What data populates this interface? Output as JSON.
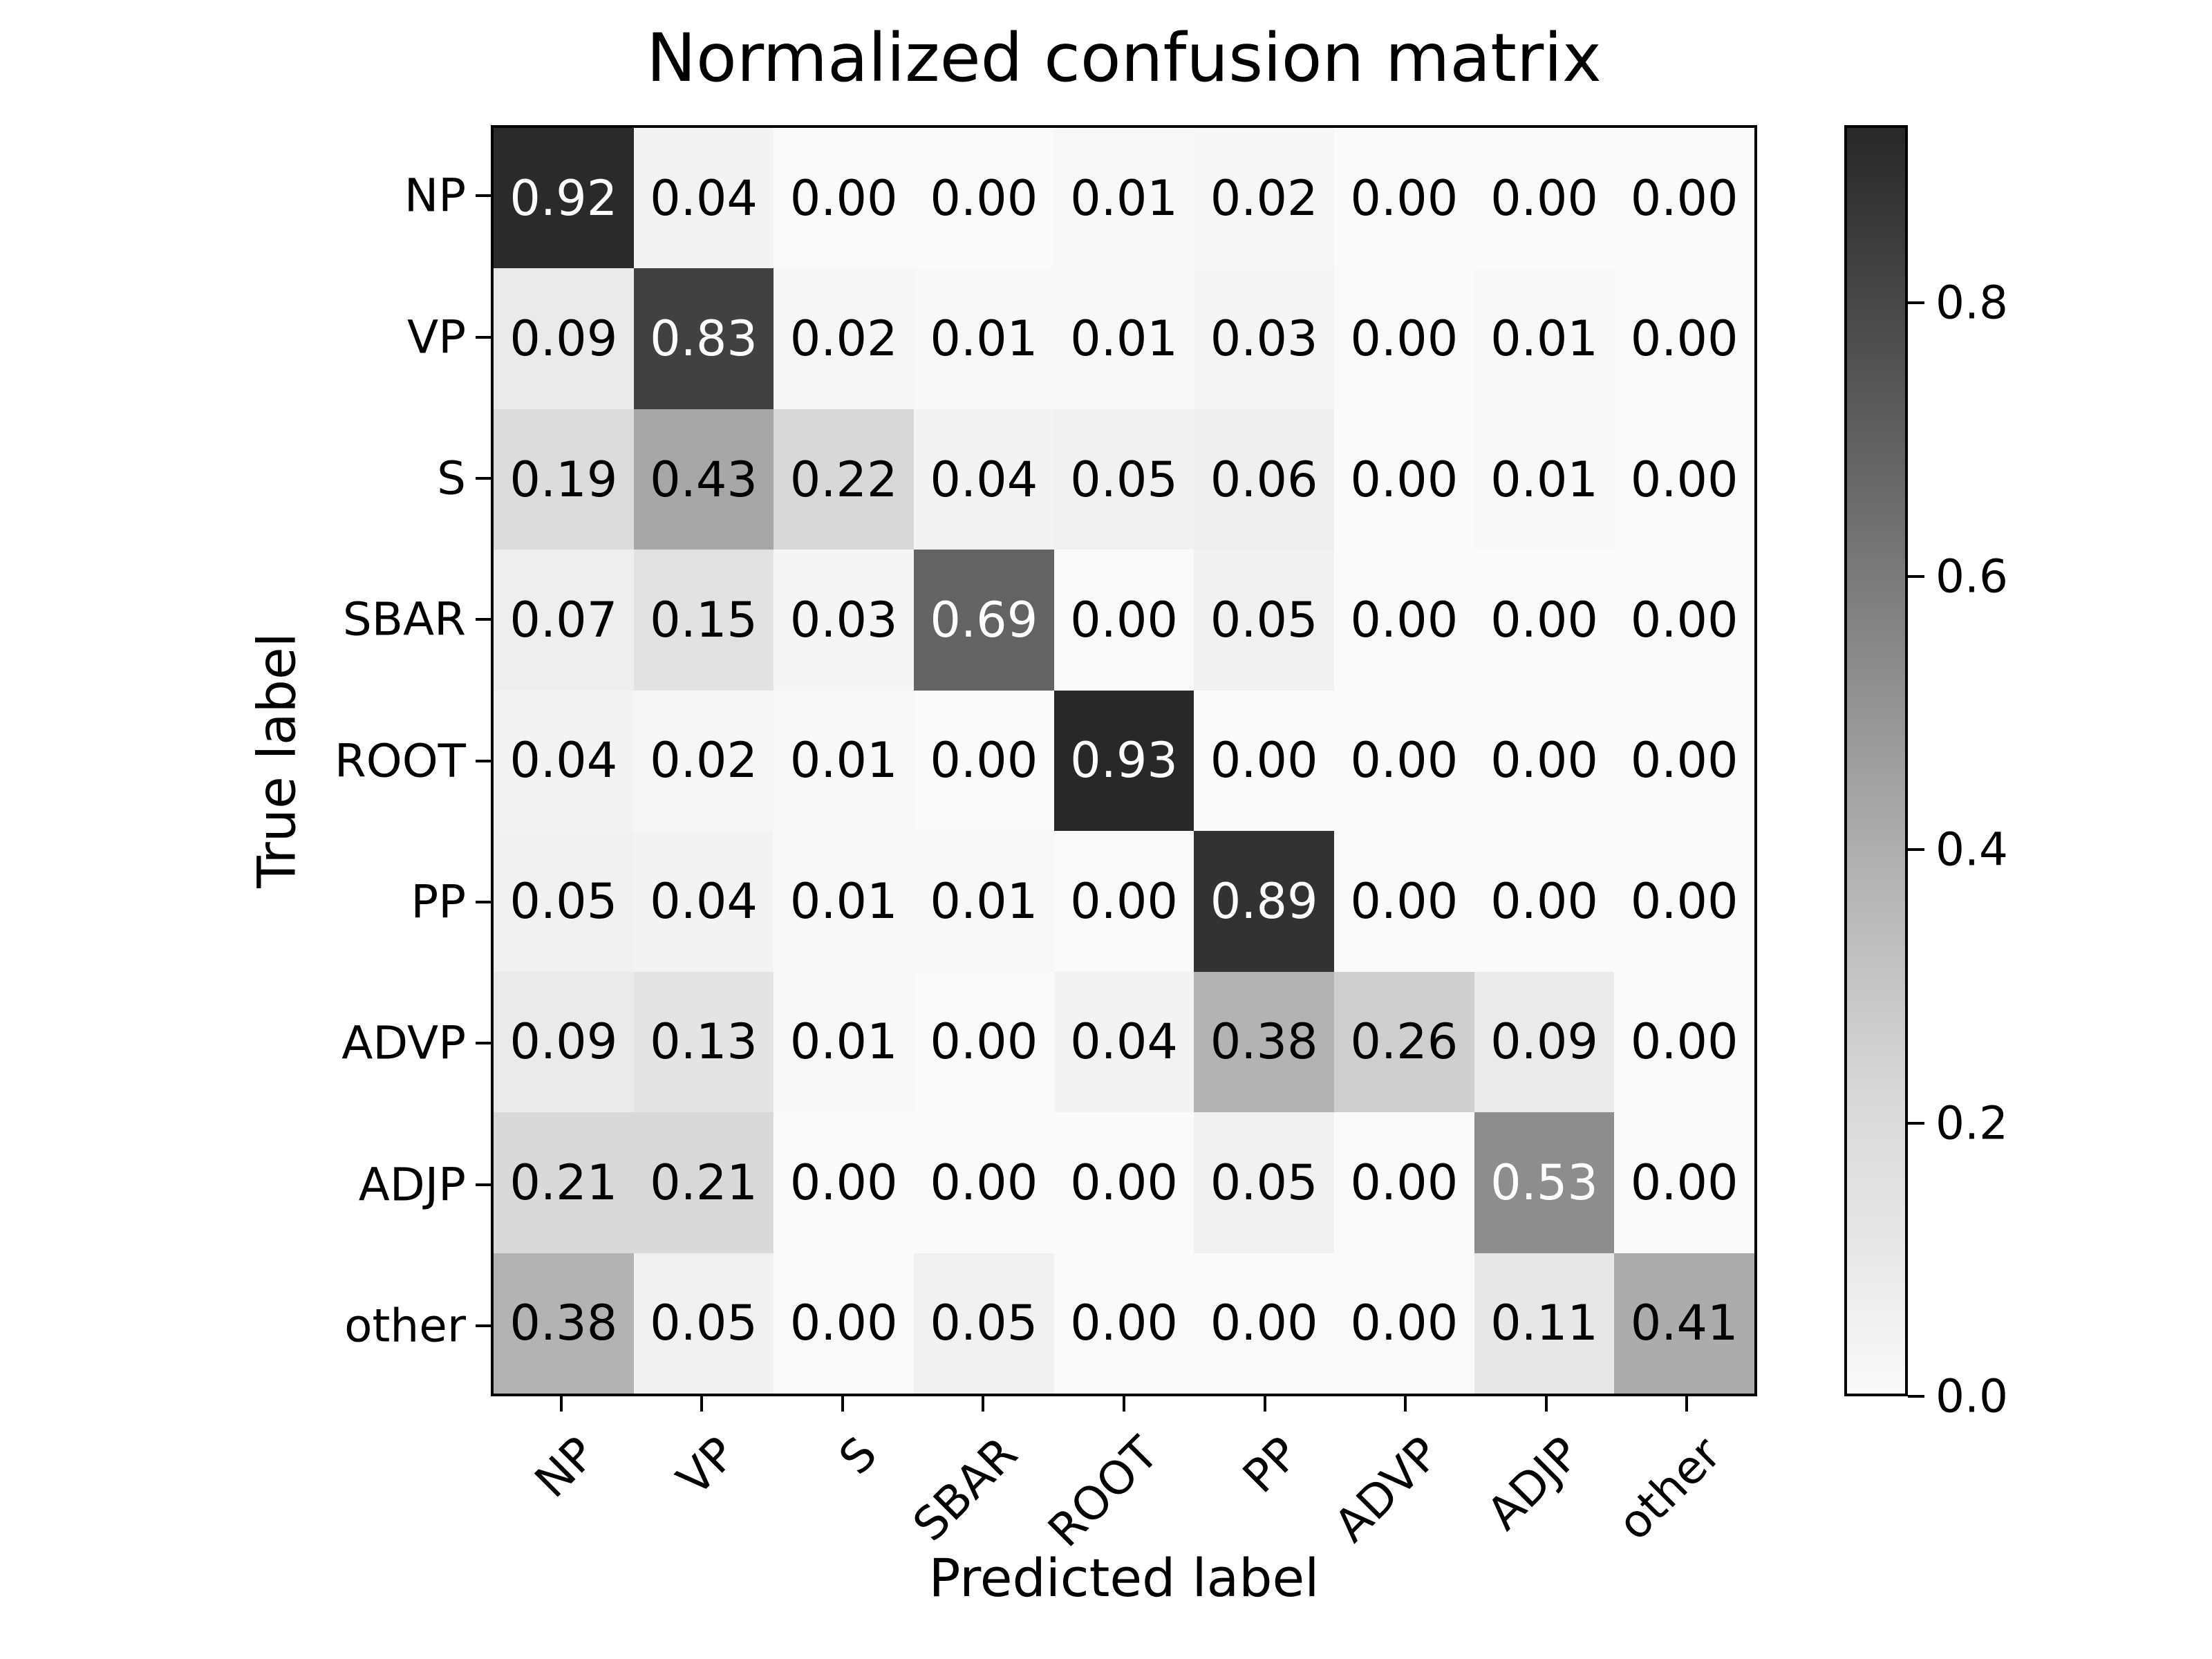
{
  "figure": {
    "background": "#ffffff"
  },
  "chart_data": {
    "type": "heatmap",
    "title": "Normalized confusion matrix",
    "xlabel": "Predicted label",
    "ylabel": "True label",
    "x_categories": [
      "NP",
      "VP",
      "S",
      "SBAR",
      "ROOT",
      "PP",
      "ADVP",
      "ADJP",
      "other"
    ],
    "y_categories": [
      "NP",
      "VP",
      "S",
      "SBAR",
      "ROOT",
      "PP",
      "ADVP",
      "ADJP",
      "other"
    ],
    "matrix": [
      [
        0.92,
        0.04,
        0.0,
        0.0,
        0.01,
        0.02,
        0.0,
        0.0,
        0.0
      ],
      [
        0.09,
        0.83,
        0.02,
        0.01,
        0.01,
        0.03,
        0.0,
        0.01,
        0.0
      ],
      [
        0.19,
        0.43,
        0.22,
        0.04,
        0.05,
        0.06,
        0.0,
        0.01,
        0.0
      ],
      [
        0.07,
        0.15,
        0.03,
        0.69,
        0.0,
        0.05,
        0.0,
        0.0,
        0.0
      ],
      [
        0.04,
        0.02,
        0.01,
        0.0,
        0.93,
        0.0,
        0.0,
        0.0,
        0.0
      ],
      [
        0.05,
        0.04,
        0.01,
        0.01,
        0.0,
        0.89,
        0.0,
        0.0,
        0.0
      ],
      [
        0.09,
        0.13,
        0.01,
        0.0,
        0.04,
        0.38,
        0.26,
        0.09,
        0.0
      ],
      [
        0.21,
        0.21,
        0.0,
        0.0,
        0.0,
        0.05,
        0.0,
        0.53,
        0.0
      ],
      [
        0.38,
        0.05,
        0.0,
        0.05,
        0.0,
        0.0,
        0.0,
        0.11,
        0.41
      ]
    ],
    "value_decimals": 2,
    "grid": false,
    "colorbar": {
      "position": "right",
      "tick_labels": [
        "0.0",
        "0.2",
        "0.4",
        "0.6",
        "0.8"
      ],
      "tick_values": [
        0.0,
        0.2,
        0.4,
        0.6,
        0.8
      ],
      "vmin": 0.0,
      "vmax": 0.93
    },
    "colormap": {
      "name": "Greys",
      "anchors": [
        {
          "v": 0.0,
          "gray": 250
        },
        {
          "v": 0.09,
          "gray": 234
        },
        {
          "v": 0.22,
          "gray": 216
        },
        {
          "v": 0.43,
          "gray": 167
        },
        {
          "v": 0.69,
          "gray": 99
        },
        {
          "v": 0.93,
          "gray": 40
        }
      ],
      "light_text_threshold": 0.465,
      "text_color_dark_cells": "#ffffff",
      "text_color_light_cells": "#000000"
    }
  }
}
